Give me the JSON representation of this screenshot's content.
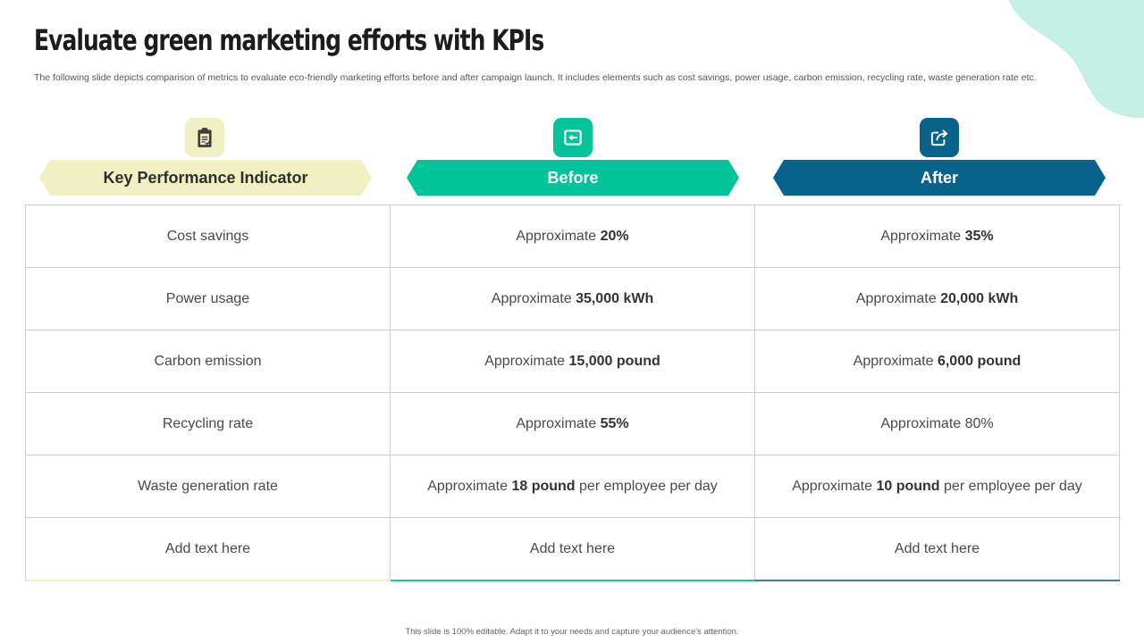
{
  "colors": {
    "kpi_header_bg": "#f1f0c3",
    "before_header_bg": "#03c39a",
    "after_header_bg": "#07638b",
    "blob": "#c5eee5"
  },
  "slide": {
    "title": "Evaluate green marketing efforts with KPIs",
    "subtitle": "The following slide depicts comparison of metrics to evaluate eco-friendly marketing efforts before and after campaign launch. It includes elements such as cost savings, power usage, carbon emission, recycling rate, waste generation rate etc."
  },
  "columns": [
    {
      "header": "Key Performance Indicator",
      "icon": "clipboard-checklist-icon"
    },
    {
      "header": "Before",
      "icon": "rewind-icon"
    },
    {
      "header": "After",
      "icon": "share-arrow-icon"
    }
  ],
  "rows": [
    {
      "kpi": "Cost savings",
      "before": {
        "prefix": "Approximate",
        "value": "20%",
        "suffix": ""
      },
      "after": {
        "prefix": "Approximate",
        "value": "35%",
        "suffix": ""
      }
    },
    {
      "kpi": "Power usage",
      "before": {
        "prefix": "Approximate",
        "value": "35,000 kWh",
        "suffix": ""
      },
      "after": {
        "prefix": "Approximate",
        "value": "20,000 kWh",
        "suffix": ""
      }
    },
    {
      "kpi": "Carbon emission",
      "before": {
        "prefix": "Approximate",
        "value": "15,000 pound",
        "suffix": ""
      },
      "after": {
        "prefix": "Approximate",
        "value": "6,000 pound",
        "suffix": ""
      }
    },
    {
      "kpi": "Recycling rate",
      "before": {
        "prefix": "Approximate",
        "value": "55%",
        "suffix": ""
      },
      "after": {
        "prefix": "Approximate 80%",
        "value": "",
        "suffix": ""
      }
    },
    {
      "kpi": "Waste generation rate",
      "before": {
        "prefix": "Approximate",
        "value": "18 pound",
        "suffix": "per employee per day"
      },
      "after": {
        "prefix": "Approximate",
        "value": "10 pound",
        "suffix": "per employee per day"
      }
    },
    {
      "kpi": "Add text here",
      "before": {
        "prefix": "Add text here",
        "value": "",
        "suffix": ""
      },
      "after": {
        "prefix": "Add text here",
        "value": "",
        "suffix": ""
      }
    }
  ],
  "footer": "This slide is 100% editable. Adapt it to your needs and capture your audience's attention."
}
